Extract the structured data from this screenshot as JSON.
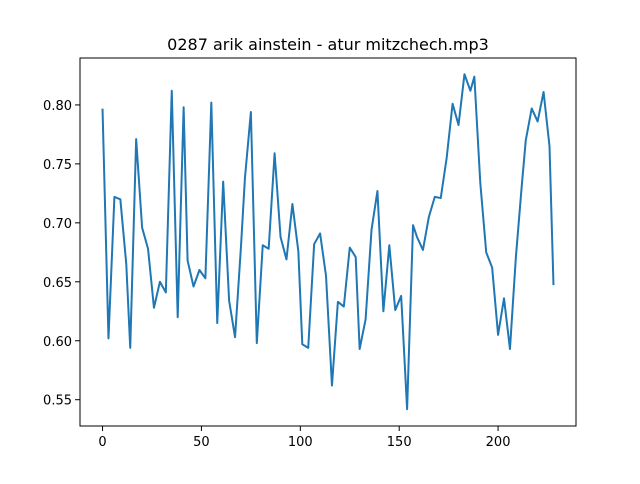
{
  "chart_data": {
    "type": "line",
    "title": "0287 arik ainstein - atur mitzchech.mp3",
    "xlabel": "",
    "ylabel": "",
    "xlim": [
      -11.4,
      239.4
    ],
    "ylim": [
      0.5277,
      0.8398
    ],
    "xticks": [
      0,
      50,
      100,
      150,
      200
    ],
    "yticks": [
      0.55,
      0.6,
      0.65,
      0.7,
      0.75,
      0.8
    ],
    "xtick_labels": [
      "0",
      "50",
      "100",
      "150",
      "200"
    ],
    "ytick_labels": [
      "0.55",
      "0.60",
      "0.65",
      "0.70",
      "0.75",
      "0.80"
    ],
    "grid": false,
    "line_color": "#1f77b4",
    "series": [
      {
        "x": [
          0,
          3,
          6,
          9,
          12,
          14,
          17,
          20,
          23,
          26,
          29,
          32,
          35,
          38,
          41,
          43,
          46,
          49,
          52,
          55,
          58,
          61,
          64,
          67,
          70,
          72,
          75,
          78,
          81,
          84,
          87,
          90,
          93,
          96,
          99,
          101,
          104,
          107,
          110,
          113,
          116,
          119,
          122,
          125,
          128,
          130,
          133,
          136,
          139,
          142,
          145,
          148,
          151,
          154,
          157,
          159,
          162,
          165,
          168,
          171,
          174,
          177,
          180,
          183,
          186,
          188,
          191,
          194,
          197,
          200,
          203,
          206,
          209,
          212,
          214,
          217,
          220,
          223,
          226,
          228
        ],
        "values": [
          0.796,
          0.602,
          0.722,
          0.72,
          0.665,
          0.594,
          0.771,
          0.696,
          0.678,
          0.628,
          0.65,
          0.641,
          0.812,
          0.62,
          0.798,
          0.668,
          0.646,
          0.66,
          0.653,
          0.802,
          0.615,
          0.735,
          0.634,
          0.603,
          0.68,
          0.738,
          0.794,
          0.598,
          0.681,
          0.678,
          0.759,
          0.688,
          0.669,
          0.716,
          0.676,
          0.597,
          0.594,
          0.682,
          0.691,
          0.655,
          0.562,
          0.633,
          0.629,
          0.679,
          0.671,
          0.593,
          0.618,
          0.694,
          0.727,
          0.625,
          0.681,
          0.626,
          0.638,
          0.542,
          0.698,
          0.688,
          0.677,
          0.705,
          0.722,
          0.721,
          0.755,
          0.801,
          0.783,
          0.826,
          0.812,
          0.824,
          0.734,
          0.675,
          0.662,
          0.605,
          0.636,
          0.593,
          0.671,
          0.732,
          0.77,
          0.797,
          0.786,
          0.811,
          0.765,
          0.648
        ]
      }
    ]
  }
}
